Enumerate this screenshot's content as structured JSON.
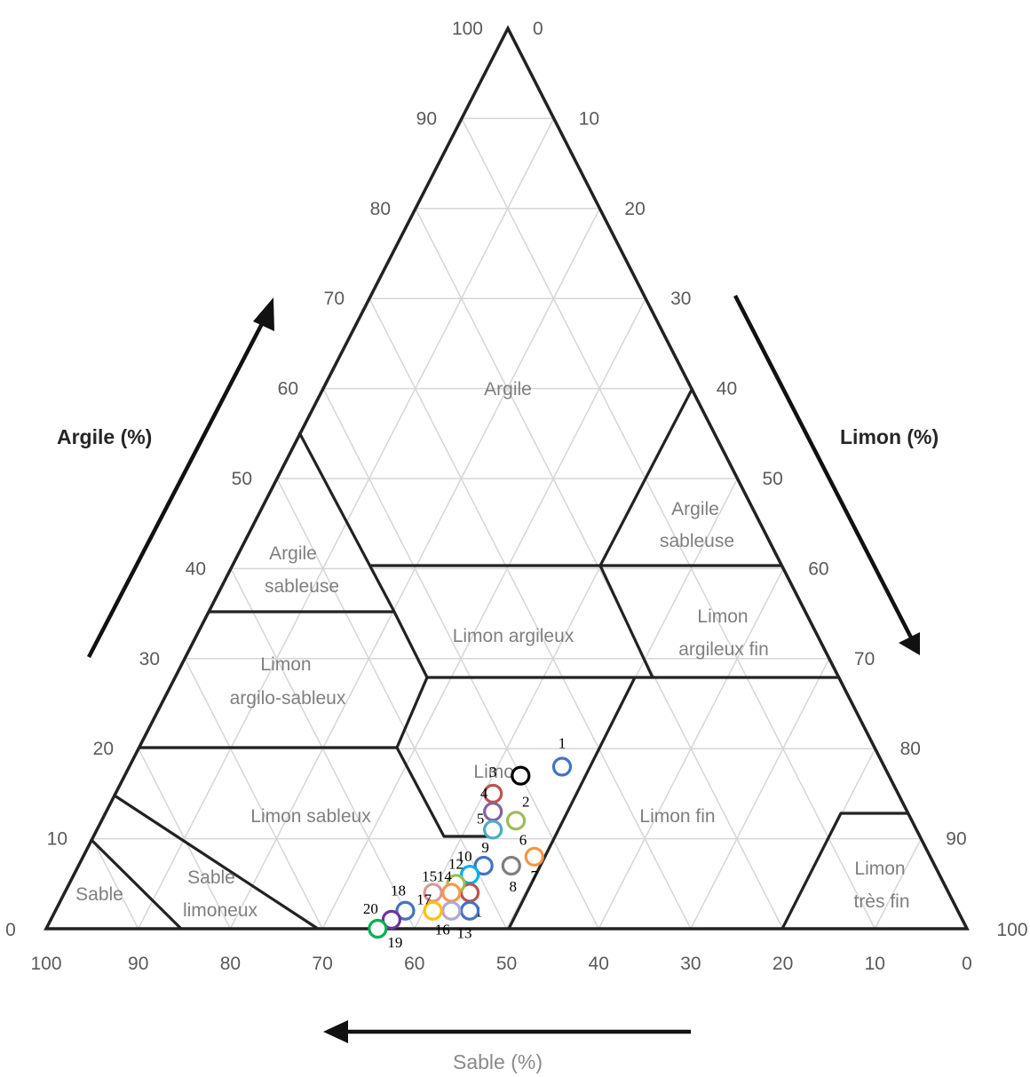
{
  "chart_data": {
    "type": "scatter",
    "subtype": "ternary-texture-triangle",
    "axes": {
      "argile": {
        "title": "Argile (%)",
        "ticks": [
          "0",
          "10",
          "20",
          "30",
          "40",
          "50",
          "60",
          "70",
          "80",
          "90",
          "100"
        ]
      },
      "limon": {
        "title": "Limon (%)",
        "ticks": [
          "0",
          "10",
          "20",
          "30",
          "40",
          "50",
          "60",
          "70",
          "80",
          "90",
          "100"
        ]
      },
      "sable": {
        "title": "Sable (%)",
        "ticks": [
          "100",
          "90",
          "80",
          "70",
          "60",
          "50",
          "40",
          "30",
          "20",
          "10",
          "0"
        ]
      }
    },
    "grid": true,
    "regions": [
      {
        "label": "Argile",
        "lines": [
          "Argile"
        ],
        "polygon": [
          [
            100,
            0
          ],
          [
            60,
            40
          ],
          [
            35,
            22
          ],
          [
            35,
            47
          ]
        ]
      },
      {
        "label": "Argile sableuse",
        "lines": [
          "Argile",
          "sableuse"
        ]
      },
      {
        "label": "Limon argileux",
        "lines": [
          "Limon argileux"
        ]
      },
      {
        "label": "Limon argilo-sableux",
        "lines": [
          "Limon",
          "argilo-sableux"
        ]
      },
      {
        "label": "Limon sableux",
        "lines": [
          "Limon sableux"
        ]
      },
      {
        "label": "Limon",
        "lines": [
          "Limon"
        ]
      },
      {
        "label": "Limon fin",
        "lines": [
          "Limon fin"
        ]
      },
      {
        "label": "Argile sableuse",
        "lines": [
          "Argile",
          "sableuse"
        ]
      },
      {
        "label": "Limon argileux fin",
        "lines": [
          "Limon",
          "argileux fin"
        ]
      },
      {
        "label": "Sable",
        "lines": [
          "Sable"
        ]
      },
      {
        "label": "Sable limoneux",
        "lines": [
          "Sable",
          "limoneux"
        ]
      },
      {
        "label": "Limon très fin",
        "lines": [
          "Limon",
          "très fin"
        ]
      }
    ],
    "points": [
      {
        "id": "1",
        "sable": 35,
        "argile": 18,
        "color": "#4472c4"
      },
      {
        "id": "2",
        "sable": 40,
        "argile": 17,
        "color": "#000000"
      },
      {
        "id": "3",
        "sable": 44,
        "argile": 15,
        "color": "#c0504d"
      },
      {
        "id": "4",
        "sable": 45,
        "argile": 13,
        "color": "#8064a2"
      },
      {
        "id": "5",
        "sable": 46,
        "argile": 11,
        "color": "#4bacc6"
      },
      {
        "id": "6",
        "sable": 43,
        "argile": 12,
        "color": "#9bbb59"
      },
      {
        "id": "7",
        "sable": 43,
        "argile": 8,
        "color": "#f79646"
      },
      {
        "id": "8",
        "sable": 46,
        "argile": 7,
        "color": "#7f7f7f"
      },
      {
        "id": "9",
        "sable": 49,
        "argile": 7,
        "color": "#4472c4"
      },
      {
        "id": "10",
        "sable": 51,
        "argile": 6,
        "color": "#00b0f0"
      },
      {
        "id": "11",
        "sable": 52,
        "argile": 4,
        "color": "#c0504d"
      },
      {
        "id": "12",
        "sable": 53,
        "argile": 5,
        "color": "#9bbb59"
      },
      {
        "id": "13",
        "sable": 53,
        "argile": 2,
        "color": "#4472c4"
      },
      {
        "id": "14",
        "sable": 54,
        "argile": 4,
        "color": "#f79646"
      },
      {
        "id": "15",
        "sable": 56,
        "argile": 4,
        "color": "#d99694"
      },
      {
        "id": "16",
        "sable": 55,
        "argile": 2,
        "color": "#b4a7d6"
      },
      {
        "id": "17",
        "sable": 57,
        "argile": 2,
        "color": "#ffc000"
      },
      {
        "id": "18",
        "sable": 60,
        "argile": 2,
        "color": "#4472c4"
      },
      {
        "id": "19",
        "sable": 62,
        "argile": 1,
        "color": "#7030a0"
      },
      {
        "id": "20",
        "sable": 64,
        "argile": 0,
        "color": "#00b050"
      }
    ]
  },
  "colors": {
    "outline": "#222222",
    "grid": "#d6d6d6",
    "arrow": "#111111"
  }
}
